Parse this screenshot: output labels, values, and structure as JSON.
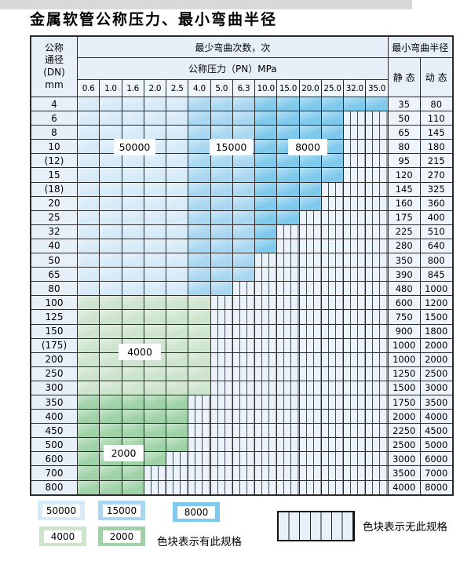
{
  "title": "金属软管公称压力、最小弯曲半径",
  "colors": {
    "blue_50000": "#d6eaf8",
    "blue_15000": "#a9d7f1",
    "blue_8000": "#7fc9ec",
    "green_4000": "#cde4cd",
    "green_2000": "#a0d2a8",
    "nospec_bg": "#ebf2fa",
    "header_bg": "#e7f0f9",
    "border": "#2a2a2a"
  },
  "table": {
    "header": {
      "dn_lines": [
        "公称",
        "通径",
        "(DN)",
        "mm"
      ],
      "cycles": "最少弯曲次数，次",
      "radius": "最小弯曲半径",
      "pressure": "公称压力（PN）MPa",
      "static_label": "静 态",
      "dynamic_label": "动 态",
      "pressures": [
        "0.6",
        "1.0",
        "1.6",
        "2.0",
        "2.5",
        "4.0",
        "5.0",
        "6.3",
        "10.0",
        "15.0",
        "20.0",
        "25.0",
        "32.0",
        "35.0"
      ]
    },
    "rows": [
      {
        "dn": "4",
        "cover": 14,
        "palette": "blue",
        "static": "35",
        "dynamic": "80"
      },
      {
        "dn": "6",
        "cover": 12,
        "palette": "blue",
        "static": "50",
        "dynamic": "110"
      },
      {
        "dn": "8",
        "cover": 12,
        "palette": "blue",
        "static": "65",
        "dynamic": "145"
      },
      {
        "dn": "10",
        "cover": 12,
        "palette": "blue",
        "static": "80",
        "dynamic": "180"
      },
      {
        "dn": "(12)",
        "cover": 12,
        "palette": "blue",
        "static": "95",
        "dynamic": "215"
      },
      {
        "dn": "15",
        "cover": 12,
        "palette": "blue",
        "static": "120",
        "dynamic": "270"
      },
      {
        "dn": "(18)",
        "cover": 11,
        "palette": "blue",
        "static": "145",
        "dynamic": "325"
      },
      {
        "dn": "20",
        "cover": 11,
        "palette": "blue",
        "static": "160",
        "dynamic": "360"
      },
      {
        "dn": "25",
        "cover": 10,
        "palette": "blue",
        "static": "175",
        "dynamic": "400"
      },
      {
        "dn": "32",
        "cover": 9,
        "palette": "blue",
        "static": "225",
        "dynamic": "510"
      },
      {
        "dn": "40",
        "cover": 9,
        "palette": "blue",
        "static": "280",
        "dynamic": "640"
      },
      {
        "dn": "50",
        "cover": 8,
        "palette": "blue",
        "static": "350",
        "dynamic": "800"
      },
      {
        "dn": "65",
        "cover": 8,
        "palette": "blue",
        "static": "390",
        "dynamic": "845"
      },
      {
        "dn": "80",
        "cover": 7,
        "palette": "blue",
        "static": "480",
        "dynamic": "1000"
      },
      {
        "dn": "100",
        "cover": 6,
        "palette": "green-light",
        "static": "600",
        "dynamic": "1200"
      },
      {
        "dn": "125",
        "cover": 6,
        "palette": "green-light",
        "static": "750",
        "dynamic": "1500"
      },
      {
        "dn": "150",
        "cover": 6,
        "palette": "green-light",
        "static": "900",
        "dynamic": "1800"
      },
      {
        "dn": "(175)",
        "cover": 6,
        "palette": "green-light",
        "static": "1000",
        "dynamic": "2000"
      },
      {
        "dn": "200",
        "cover": 6,
        "palette": "green-light",
        "static": "1000",
        "dynamic": "2000"
      },
      {
        "dn": "250",
        "cover": 6,
        "palette": "green-light",
        "static": "1250",
        "dynamic": "2500"
      },
      {
        "dn": "300",
        "cover": 6,
        "palette": "green-light",
        "static": "1500",
        "dynamic": "3000"
      },
      {
        "dn": "350",
        "cover": 5,
        "palette": "green-dark",
        "static": "1750",
        "dynamic": "3500"
      },
      {
        "dn": "400",
        "cover": 5,
        "palette": "green-dark",
        "static": "2000",
        "dynamic": "4000"
      },
      {
        "dn": "450",
        "cover": 5,
        "palette": "green-dark",
        "static": "2250",
        "dynamic": "4500"
      },
      {
        "dn": "500",
        "cover": 5,
        "palette": "green-dark",
        "static": "2500",
        "dynamic": "5000"
      },
      {
        "dn": "600",
        "cover": 4,
        "palette": "green-dark",
        "static": "3000",
        "dynamic": "6000"
      },
      {
        "dn": "700",
        "cover": 3,
        "palette": "green-dark",
        "static": "3500",
        "dynamic": "7000"
      },
      {
        "dn": "800",
        "cover": 3,
        "palette": "green-dark",
        "static": "4000",
        "dynamic": "8000"
      }
    ]
  },
  "float_labels": [
    {
      "text": "50000"
    },
    {
      "text": "15000"
    },
    {
      "text": "8000"
    },
    {
      "text": "4000"
    },
    {
      "text": "2000"
    }
  ],
  "legend": {
    "items": [
      {
        "label": "50000"
      },
      {
        "label": "15000"
      },
      {
        "label": "8000"
      },
      {
        "label": "4000"
      },
      {
        "label": "2000"
      }
    ],
    "has_spec_text": "色块表示有此规格",
    "no_spec_text": "色块表示无此规格"
  }
}
